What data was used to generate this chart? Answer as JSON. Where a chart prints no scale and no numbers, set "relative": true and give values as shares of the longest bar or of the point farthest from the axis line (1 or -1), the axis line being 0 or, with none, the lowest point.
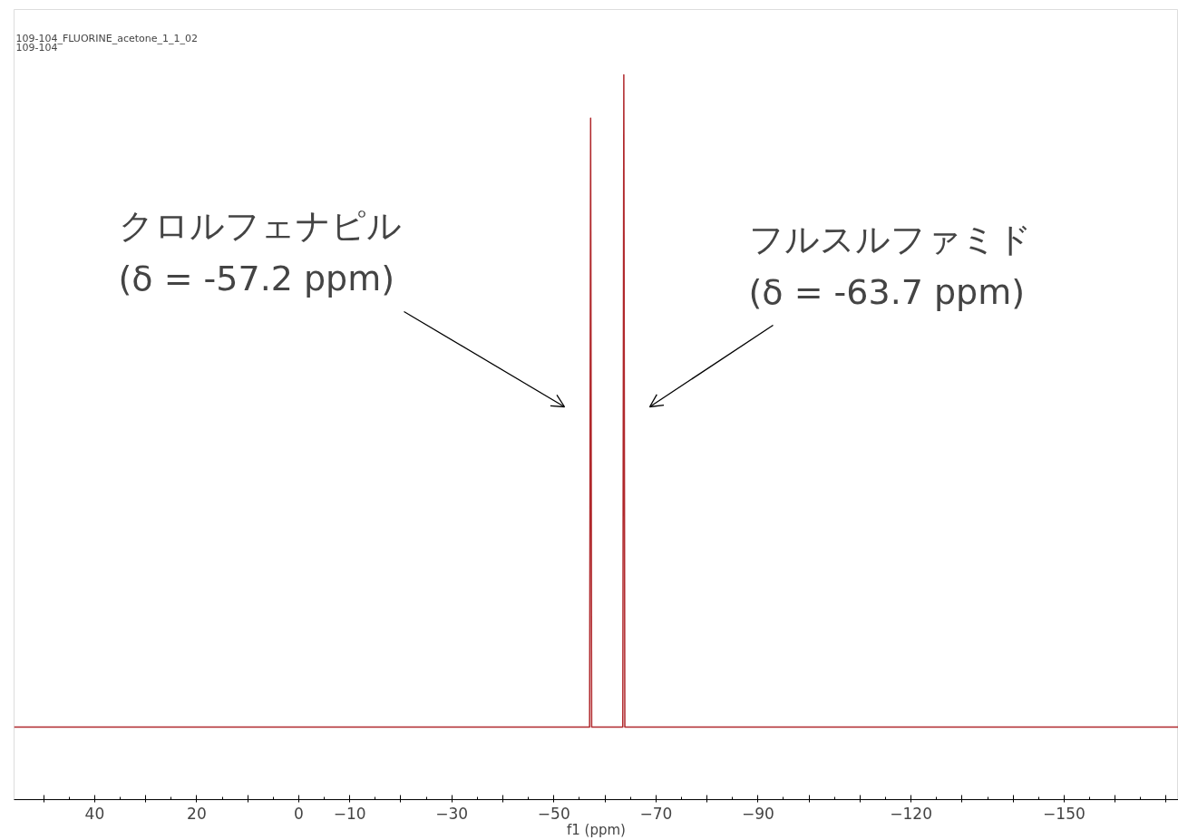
{
  "chart_data": {
    "type": "line",
    "title": "109-104_FLUORINE_acetone_1_1_02",
    "subtitle": "109-104",
    "xlabel": "f1 (ppm)",
    "relative": true,
    "tick_labels": "x",
    "grid": false,
    "xlim": [
      55.8,
      -172.4
    ],
    "xticks": [
      {
        "value": 50,
        "label": null
      },
      40,
      {
        "value": 30,
        "label": null
      },
      20,
      {
        "value": 10,
        "label": null
      },
      0,
      {
        "value": -10,
        "label": "−10"
      },
      {
        "value": -20,
        "label": null
      },
      {
        "value": -30,
        "label": "−30"
      },
      {
        "value": -40,
        "label": null
      },
      {
        "value": -50,
        "label": "−50"
      },
      {
        "value": -60,
        "label": null
      },
      {
        "value": -70,
        "label": "−70"
      },
      {
        "value": -80,
        "label": null
      },
      {
        "value": -90,
        "label": "−90"
      },
      {
        "value": -100,
        "label": null
      },
      {
        "value": -110,
        "label": null
      },
      {
        "value": -120,
        "label": "−120"
      },
      {
        "value": -130,
        "label": null
      },
      {
        "value": -140,
        "label": null
      },
      {
        "value": -150,
        "label": "−150"
      },
      {
        "value": -160,
        "label": null
      },
      {
        "value": -170,
        "label": null
      }
    ],
    "series": [
      {
        "color": "#b0282c",
        "x": [
          55.8,
          -57.0,
          -57.2,
          -57.4,
          -63.5,
          -63.7,
          -63.9,
          -172.4
        ],
        "values": [
          0.1,
          0.1,
          0.94,
          0.1,
          0.1,
          1,
          0.1,
          0.1
        ]
      }
    ],
    "annotations": [
      "クロルフェナピル\n(δ = -57.2 ppm)",
      "フルスルファミド\n(δ = -63.7 ppm)"
    ]
  }
}
